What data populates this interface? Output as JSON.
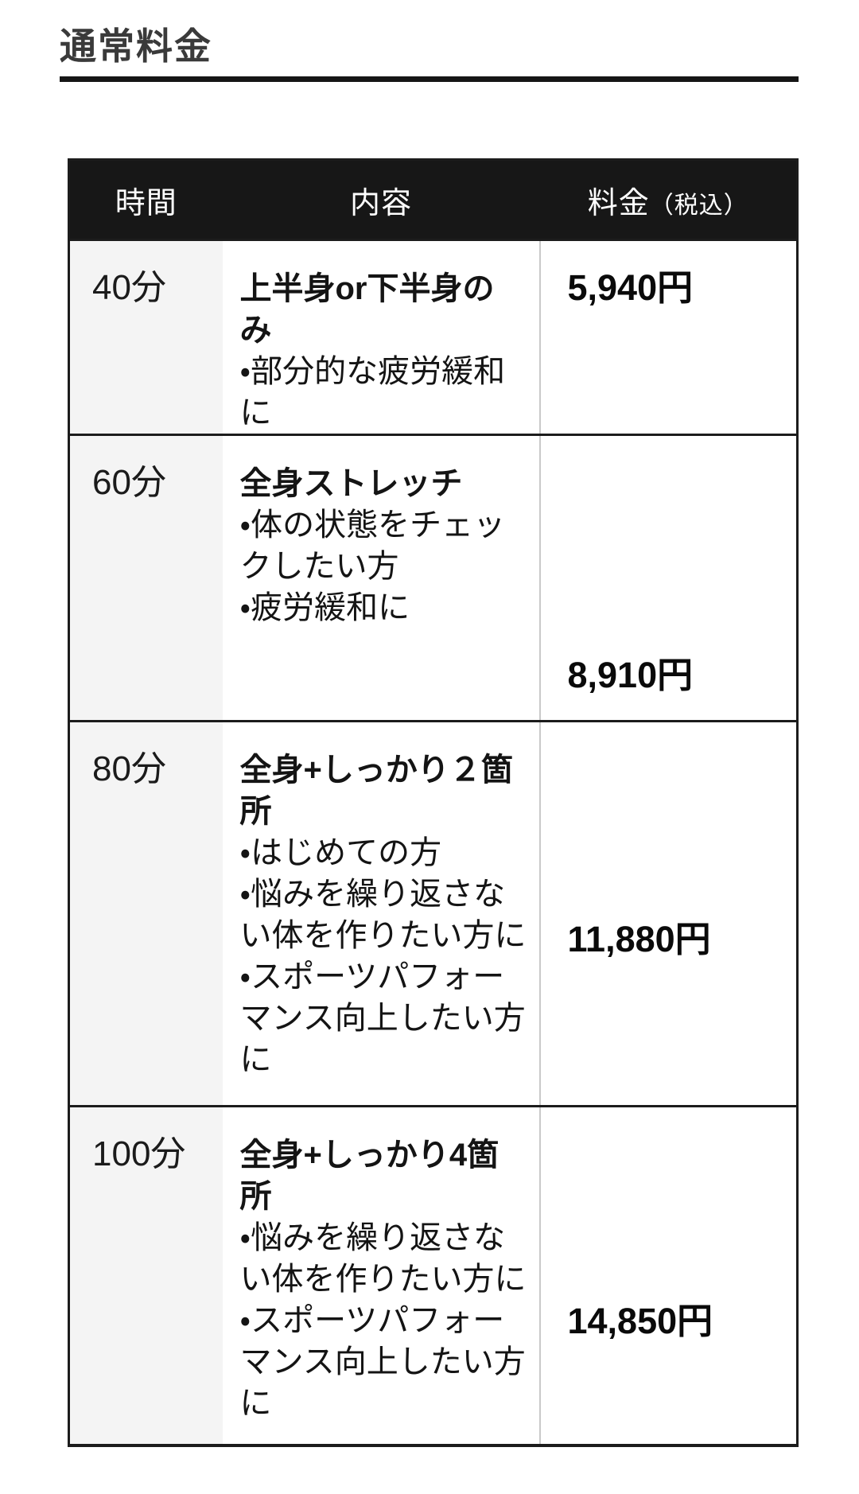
{
  "title": "通常料金",
  "colors": {
    "header_bg": "#171717",
    "header_text": "#ffffff",
    "time_col_bg": "#f4f4f4",
    "border_dark": "#1c1c1c",
    "divider_light": "#c9c9c9",
    "title_text": "#3a3a3a"
  },
  "table": {
    "headers": [
      "時間",
      "内容",
      "料金"
    ],
    "header_price_note": "（税込）",
    "rows": [
      {
        "time": "40分",
        "heading": "上半身or下半身の\nみ",
        "bullets": [
          "・部分的な疲労緩和\nに"
        ],
        "price": "5,940円"
      },
      {
        "time": "60分",
        "heading": "全身ストレッチ",
        "bullets": [
          "・体の状態をチェッ\nクしたい方",
          "・疲労緩和に"
        ],
        "price": "8,910円"
      },
      {
        "time": "80分",
        "heading": "全身+しっかり２箇\n所",
        "bullets": [
          "・はじめての方",
          "・悩みを繰り返さな\nい体を作りたい方に",
          "・スポーツパフォー\nマンス向上したい方\nに"
        ],
        "price": "11,880円"
      },
      {
        "time": "100分",
        "heading": "全身+しっかり4箇\n所",
        "bullets": [
          "・悩みを繰り返さな\nい体を作りたい方に",
          "・スポーツパフォー\nマンス向上したい方\nに"
        ],
        "price": "14,850円"
      }
    ]
  }
}
